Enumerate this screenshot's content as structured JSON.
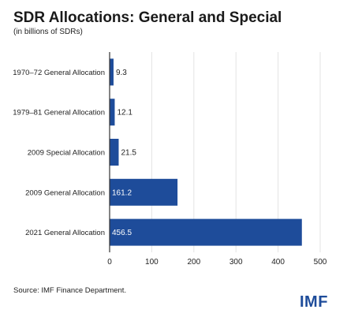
{
  "header": {
    "title": "SDR Allocations: General and Special",
    "subtitle": "(in billions of SDRs)"
  },
  "footer": {
    "source": "Source: IMF Finance Department.",
    "logo_text": "IMF"
  },
  "colors": {
    "bar": "#1e4c9a",
    "grid": "#e3e3e3",
    "axis": "#333333"
  },
  "chart_data": {
    "type": "bar",
    "orientation": "horizontal",
    "categories": [
      "1970–72 General Allocation",
      "1979–81 General Allocation",
      "2009 Special Allocation",
      "2009 General Allocation",
      "2021 General Allocation"
    ],
    "values": [
      9.3,
      12.1,
      21.5,
      161.2,
      456.5
    ],
    "value_labels": [
      "9.3",
      "12.1",
      "21.5",
      "161.2",
      "456.5"
    ],
    "xlim": [
      0,
      500
    ],
    "xticks": [
      0,
      100,
      200,
      300,
      400,
      500
    ],
    "grid": true
  }
}
